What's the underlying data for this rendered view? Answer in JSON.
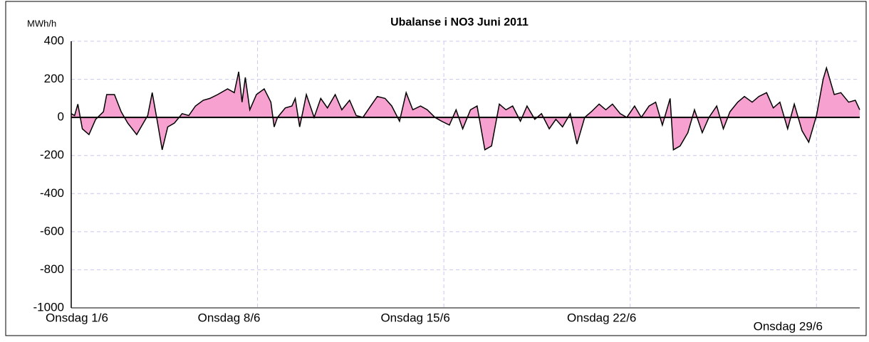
{
  "chart_data": {
    "type": "area",
    "title": "Ubalanse i NO3  Juni 2011",
    "y_unit": "MWh/h",
    "x": [
      0,
      3,
      6,
      10,
      16,
      22,
      29,
      32,
      39,
      45,
      51,
      59,
      64,
      69,
      73,
      77,
      82,
      87,
      93,
      100,
      106,
      112,
      119,
      125,
      132,
      141,
      147,
      151,
      154,
      157,
      161,
      167,
      174,
      180,
      183,
      186,
      193,
      199,
      202,
      206,
      212,
      219,
      225,
      231,
      238,
      244,
      251,
      257,
      263,
      270,
      276,
      283,
      289,
      296,
      302,
      308,
      315,
      321,
      328,
      334,
      341,
      347,
      353,
      360,
      366,
      373,
      379,
      386,
      392,
      398,
      405,
      411,
      418,
      424,
      431,
      437,
      443,
      450,
      456,
      463,
      469,
      476,
      482,
      488,
      495,
      501,
      508,
      514,
      521,
      527,
      533,
      540,
      543,
      549,
      556,
      562,
      569,
      575,
      582,
      588,
      594,
      601,
      607,
      614,
      620,
      627,
      633,
      639,
      646,
      652,
      659,
      665,
      672,
      678,
      681,
      688,
      694,
      701,
      707,
      711
    ],
    "values": [
      20,
      10,
      70,
      -60,
      -90,
      -10,
      30,
      120,
      120,
      30,
      -30,
      -90,
      -40,
      10,
      130,
      0,
      -170,
      -50,
      -30,
      20,
      10,
      60,
      90,
      100,
      120,
      150,
      130,
      240,
      80,
      210,
      40,
      120,
      150,
      80,
      -50,
      0,
      50,
      60,
      100,
      -50,
      120,
      0,
      100,
      50,
      120,
      40,
      90,
      10,
      0,
      60,
      110,
      100,
      60,
      -20,
      130,
      40,
      60,
      40,
      0,
      -20,
      -40,
      40,
      -60,
      40,
      60,
      -170,
      -150,
      70,
      40,
      60,
      -20,
      60,
      -10,
      20,
      -60,
      -10,
      -50,
      20,
      -140,
      0,
      30,
      70,
      40,
      70,
      20,
      0,
      60,
      0,
      60,
      80,
      -40,
      100,
      -170,
      -150,
      -80,
      40,
      -80,
      0,
      60,
      -60,
      30,
      80,
      110,
      80,
      110,
      130,
      50,
      80,
      -60,
      70,
      -70,
      -130,
      10,
      200,
      260,
      120,
      130,
      80,
      90,
      40
    ],
    "color": "#f7a1d0",
    "line_color": "#000000",
    "xlim": [
      0,
      711
    ],
    "xticks": [
      {
        "value": 0,
        "label": "Onsdag 1/6"
      },
      {
        "value": 168,
        "label": "Onsdag 8/6"
      },
      {
        "value": 336,
        "label": "Onsdag 15/6"
      },
      {
        "value": 504,
        "label": "Onsdag 22/6"
      },
      {
        "value": 672,
        "label": "Onsdag 29/6"
      }
    ],
    "ylim": [
      -1000,
      400
    ],
    "yticks": [
      -1000,
      -800,
      -600,
      -400,
      -200,
      0,
      200,
      400
    ],
    "grid": true
  }
}
